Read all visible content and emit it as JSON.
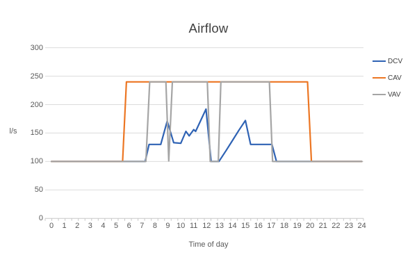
{
  "chart_data": {
    "type": "line",
    "title": "Airflow",
    "xlabel": "Time of day",
    "ylabel": "l/s",
    "xlim": [
      0,
      24
    ],
    "ylim": [
      0,
      300
    ],
    "yticks": [
      0,
      50,
      100,
      150,
      200,
      250,
      300
    ],
    "xticks": [
      0,
      1,
      2,
      3,
      4,
      5,
      6,
      7,
      8,
      9,
      10,
      11,
      12,
      13,
      14,
      15,
      16,
      17,
      18,
      19,
      20,
      21,
      22,
      23,
      24
    ],
    "x_minor_tick_step": 0.5,
    "grid": "horizontal",
    "gridline_color": "#dbdbdb",
    "axis_line_color": "#c8c8c8",
    "legend_position": "right",
    "legend": [
      "DCV",
      "CAV",
      "VAV"
    ],
    "series": [
      {
        "name": "DCV",
        "color": "#2e62b4",
        "points": [
          [
            0,
            100
          ],
          [
            7.25,
            100
          ],
          [
            7.55,
            130
          ],
          [
            8.45,
            130
          ],
          [
            8.95,
            171
          ],
          [
            9.45,
            133
          ],
          [
            10,
            132
          ],
          [
            10.4,
            153
          ],
          [
            10.65,
            145
          ],
          [
            11,
            156
          ],
          [
            11.15,
            153
          ],
          [
            11.95,
            192
          ],
          [
            12.35,
            100
          ],
          [
            12.95,
            100
          ],
          [
            13.5,
            119
          ],
          [
            14,
            137
          ],
          [
            14.5,
            155
          ],
          [
            15,
            172
          ],
          [
            15.4,
            130
          ],
          [
            17.05,
            130
          ],
          [
            17.4,
            100
          ],
          [
            24,
            100
          ]
        ]
      },
      {
        "name": "CAV",
        "color": "#ec7623",
        "points": [
          [
            0,
            100
          ],
          [
            5.5,
            100
          ],
          [
            5.8,
            240
          ],
          [
            19.8,
            240
          ],
          [
            20.1,
            100
          ],
          [
            24,
            100
          ]
        ]
      },
      {
        "name": "VAV",
        "color": "#a5a5a5",
        "points": [
          [
            0,
            100
          ],
          [
            7.3,
            100
          ],
          [
            7.6,
            240
          ],
          [
            8.85,
            240
          ],
          [
            9.07,
            101
          ],
          [
            9.35,
            240
          ],
          [
            12.05,
            240
          ],
          [
            12.28,
            100
          ],
          [
            12.9,
            100
          ],
          [
            13.1,
            240
          ],
          [
            16.85,
            240
          ],
          [
            17.1,
            100
          ],
          [
            24,
            100
          ]
        ]
      }
    ]
  }
}
